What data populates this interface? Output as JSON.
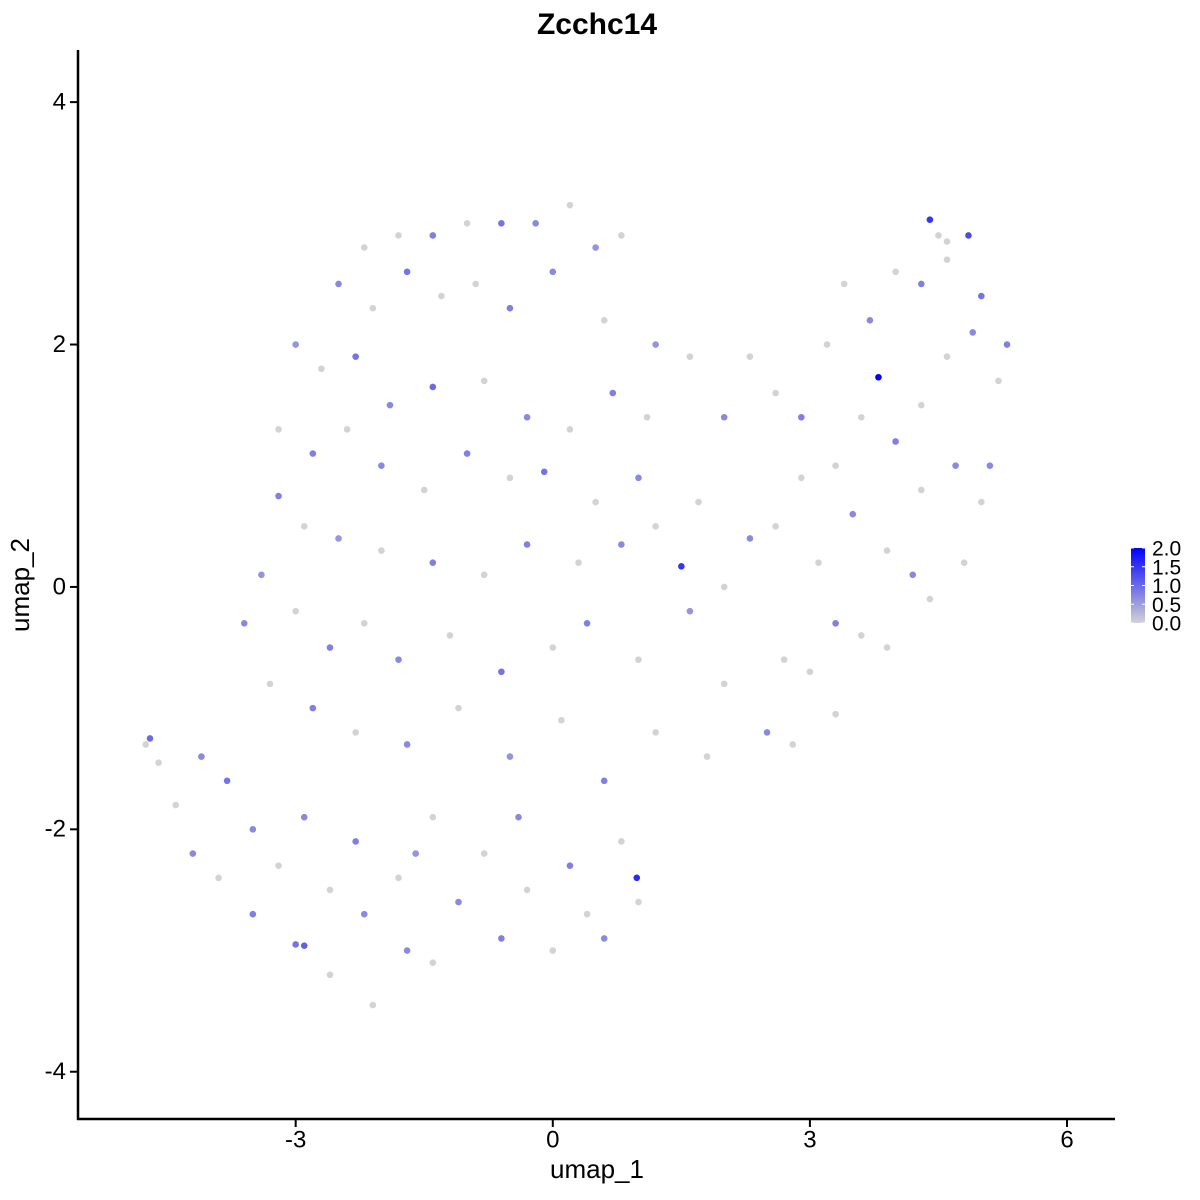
{
  "chart_data": {
    "type": "scatter",
    "title": "Zcchc14",
    "x_label": "umap_1",
    "y_label": "umap_2",
    "xlim": [
      -5.54,
      6.56
    ],
    "ylim": [
      -4.39,
      4.43
    ],
    "xticks": [
      -3,
      0,
      3,
      6
    ],
    "yticks": [
      -4,
      -2,
      0,
      2,
      4
    ],
    "grid": false,
    "color_low": "#d3d3d3",
    "color_high": "#0000ff",
    "colorbar": {
      "lim": [
        0,
        2
      ],
      "ticks": [
        {
          "value": 0,
          "label": "0.0"
        },
        {
          "value": 0.5,
          "label": "0.5"
        },
        {
          "value": 1,
          "label": "1.0"
        },
        {
          "value": 1.5,
          "label": "1.5"
        },
        {
          "value": 2,
          "label": "2.0"
        }
      ]
    },
    "x": [
      -2.2,
      -1.8,
      -1.4,
      -1,
      -0.6,
      -0.2,
      0.2,
      0.5,
      0.8,
      -2.5,
      -2.1,
      -1.7,
      -1.3,
      -0.9,
      -0.5,
      0,
      0.6,
      1.2,
      -3,
      -2.7,
      -2.3,
      -1.9,
      -1.4,
      -0.8,
      -0.3,
      0.2,
      0.7,
      1.1,
      -3.2,
      -2.8,
      -2.4,
      -2,
      -1.5,
      -1,
      -0.5,
      -0.1,
      0.5,
      1,
      -3.2,
      -2.9,
      -2.5,
      -2,
      -1.4,
      -0.8,
      -0.3,
      0.3,
      0.8,
      1.2,
      -3.4,
      -3,
      -2.6,
      -2.2,
      -1.8,
      -1.2,
      -0.6,
      0,
      0.4,
      1,
      1.6,
      2,
      -3.6,
      -3.3,
      -2.8,
      -2.3,
      -1.7,
      -1.1,
      -0.5,
      0.1,
      0.6,
      1.2,
      1.8,
      2.5,
      2.8,
      3.3,
      -4.7,
      -4.75,
      -4.6,
      -4.4,
      -4.1,
      -4.2,
      -3.8,
      -3.9,
      -3.5,
      -3.5,
      -3.2,
      -3,
      -2.9,
      -2.6,
      -2.6,
      -2.3,
      -2.2,
      -2.1,
      -1.8,
      -1.7,
      -1.4,
      -1.4,
      -1.1,
      -0.8,
      -0.6,
      -0.3,
      0,
      0.2,
      0.4,
      0.6,
      0.8,
      1,
      -2.9,
      -1.6,
      -0.4,
      1.6,
      2,
      2.3,
      2.6,
      2.9,
      3.2,
      3.4,
      3.7,
      4,
      4.3,
      4.6,
      5,
      5.3,
      5.2,
      4.9,
      4.6,
      4.3,
      4,
      3.6,
      3.3,
      2.9,
      2.6,
      2.3,
      2,
      1.7,
      3.1,
      3.5,
      3.9,
      4.3,
      4.7,
      5,
      5.1,
      4.8,
      4.4,
      3.9,
      3.6,
      3.3,
      3,
      2.7,
      4.2,
      4.5,
      4.6,
      3.8,
      4.4,
      4.85,
      1.5,
      0.98
    ],
    "values": [
      2.8,
      2.9,
      2.9,
      3,
      3,
      3,
      3.15,
      2.8,
      2.9,
      2.5,
      2.3,
      2.6,
      2.4,
      2.5,
      2.3,
      2.6,
      2.2,
      2,
      2,
      1.8,
      1.9,
      1.5,
      1.65,
      1.7,
      1.4,
      1.3,
      1.6,
      1.4,
      1.3,
      1.1,
      1.3,
      1,
      0.8,
      1.1,
      0.9,
      0.95,
      0.7,
      0.9,
      0.75,
      0.5,
      0.4,
      0.3,
      0.2,
      0.1,
      0.35,
      0.2,
      0.35,
      0.5,
      0.1,
      -0.2,
      -0.5,
      -0.3,
      -0.6,
      -0.4,
      -0.7,
      -0.5,
      -0.3,
      -0.6,
      -0.2,
      -0.8,
      -0.3,
      -0.8,
      -1,
      -1.2,
      -1.3,
      -1,
      -1.4,
      -1.1,
      -1.6,
      -1.2,
      -1.4,
      -1.2,
      -1.3,
      -1.05,
      -1.25,
      -1.3,
      -1.45,
      -1.8,
      -1.4,
      -2.2,
      -1.6,
      -2.4,
      -2,
      -2.7,
      -2.3,
      -2.95,
      -1.9,
      -2.5,
      -3.2,
      -2.1,
      -2.7,
      -3.45,
      -2.4,
      -3,
      -1.9,
      -3.1,
      -2.6,
      -2.2,
      -2.9,
      -2.5,
      -3,
      -2.3,
      -2.7,
      -2.9,
      -2.1,
      -2.6,
      -2.96,
      -2.2,
      -1.9,
      1.9,
      1.4,
      1.9,
      1.6,
      1.4,
      2,
      2.5,
      2.2,
      2.6,
      2.5,
      2.7,
      2.4,
      2,
      1.7,
      2.1,
      1.9,
      1.5,
      1.2,
      1.4,
      1,
      0.9,
      0.5,
      0.4,
      0,
      0.7,
      0.2,
      0.6,
      0.3,
      0.8,
      1,
      0.7,
      1,
      0.2,
      -0.1,
      -0.5,
      -0.4,
      -0.3,
      -0.7,
      -0.6,
      0.1,
      2.9,
      2.85,
      1.73,
      3.03,
      2.9,
      0.17,
      -2.4
    ],
    "expression": [
      0,
      0,
      0.8,
      0,
      0.9,
      0.7,
      0,
      0.6,
      0,
      0.7,
      0,
      0.9,
      0,
      0,
      0.8,
      0.7,
      0,
      0.6,
      0.6,
      0,
      0.9,
      0.7,
      1,
      0,
      0.7,
      0,
      0.8,
      0,
      0,
      0.8,
      0,
      0.7,
      0,
      0.8,
      0,
      0.9,
      0,
      0.7,
      0.8,
      0,
      0.6,
      0,
      0.8,
      0,
      0.8,
      0,
      0.7,
      0,
      0.6,
      0,
      0.8,
      0,
      0.7,
      0,
      0.9,
      0,
      0.8,
      0,
      0.6,
      0,
      0.7,
      0,
      0.8,
      0,
      0.7,
      0,
      0.6,
      0,
      0.8,
      0,
      0,
      0.7,
      0,
      0,
      1,
      0,
      0,
      0,
      0.7,
      0.7,
      0.9,
      0,
      0.7,
      0.8,
      0,
      0.9,
      0.7,
      0,
      0,
      0.8,
      0.7,
      0,
      0,
      0.7,
      0,
      0,
      0.7,
      0,
      0.8,
      0,
      0,
      0.8,
      0,
      0.7,
      0,
      0,
      1.1,
      0.6,
      0.7,
      0,
      0.7,
      0,
      0,
      0.8,
      0,
      0,
      0.7,
      0,
      0.8,
      0,
      0.9,
      0.8,
      0,
      0.7,
      0,
      0,
      0.8,
      0,
      0,
      0,
      0,
      0.7,
      0,
      0,
      0,
      0.7,
      0,
      0,
      0.7,
      0,
      0.7,
      0,
      0,
      0,
      0,
      0.8,
      0,
      0,
      0.7,
      0,
      0,
      2,
      1.5,
      1.3,
      1.5,
      1.6
    ]
  }
}
